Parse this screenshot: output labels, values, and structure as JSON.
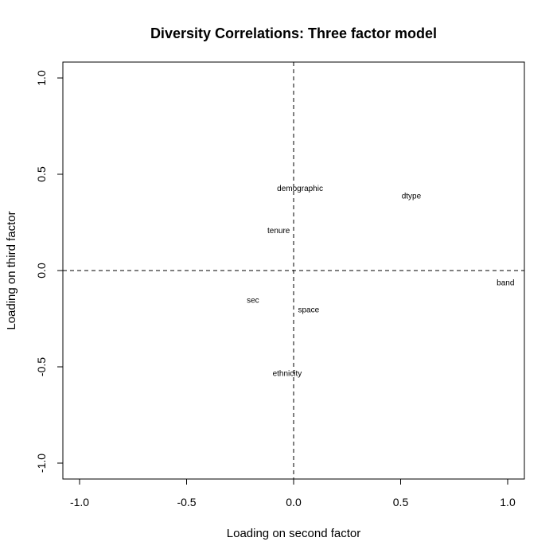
{
  "chart_data": {
    "type": "scatter",
    "title": "Diversity Correlations: Three factor model",
    "xlabel": "Loading on second factor",
    "ylabel": "Loading on third factor",
    "xlim": [
      -1.0,
      1.0
    ],
    "ylim": [
      -1.0,
      1.0
    ],
    "xticks": [
      "-1.0",
      "-0.5",
      "0.0",
      "0.5",
      "1.0"
    ],
    "yticks": [
      "-1.0",
      "-0.5",
      "0.0",
      "0.5",
      "1.0"
    ],
    "grid": false,
    "reference_lines": {
      "x": 0,
      "y": 0,
      "style": "dashed"
    },
    "points": [
      {
        "label": "demographic",
        "x": 0.03,
        "y": 0.43
      },
      {
        "label": "dtype",
        "x": 0.55,
        "y": 0.39
      },
      {
        "label": "tenure",
        "x": -0.07,
        "y": 0.21
      },
      {
        "label": "band",
        "x": 0.99,
        "y": -0.06
      },
      {
        "label": "sec",
        "x": -0.19,
        "y": -0.15
      },
      {
        "label": "space",
        "x": 0.07,
        "y": -0.2
      },
      {
        "label": "ethnicity",
        "x": -0.03,
        "y": -0.53
      }
    ]
  }
}
